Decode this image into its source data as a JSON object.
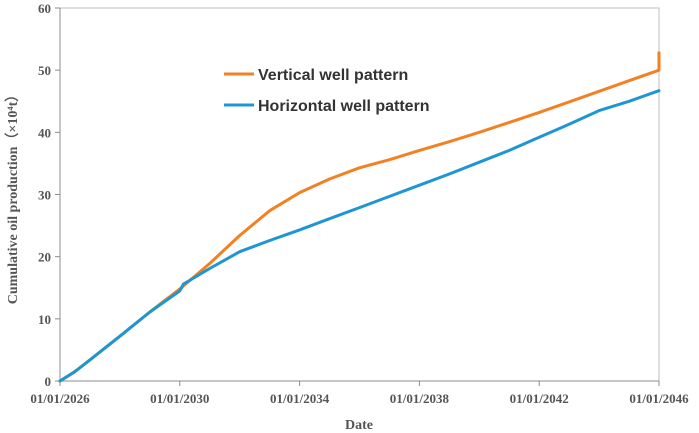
{
  "chart_data": {
    "type": "line",
    "title": "",
    "xlabel": "Date",
    "ylabel": "Cumulative oil production（×10⁴t）",
    "x_ticks": [
      "01/01/2026",
      "01/01/2030",
      "01/01/2034",
      "01/01/2038",
      "01/01/2042",
      "01/01/2046"
    ],
    "x_range": [
      "01/01/2026",
      "01/01/2046"
    ],
    "y_ticks": [
      "0",
      "10",
      "20",
      "30",
      "40",
      "50",
      "60"
    ],
    "ylim": [
      0,
      60
    ],
    "grid": false,
    "legend_position": "top-left inside plot",
    "series": [
      {
        "name": "Vertical well pattern",
        "color": "#F28123",
        "points": [
          [
            "2026-01-01",
            0
          ],
          [
            "2026-07-01",
            1.5
          ],
          [
            "2027-01-01",
            3.4
          ],
          [
            "2028-01-01",
            7.2
          ],
          [
            "2029-01-01",
            11.1
          ],
          [
            "2030-01-01",
            14.8
          ],
          [
            "2031-01-01",
            18.9
          ],
          [
            "2032-01-01",
            23.4
          ],
          [
            "2033-01-01",
            27.4
          ],
          [
            "2034-01-01",
            30.3
          ],
          [
            "2035-01-01",
            32.5
          ],
          [
            "2036-01-01",
            34.3
          ],
          [
            "2037-01-01",
            35.6
          ],
          [
            "2038-01-01",
            37.1
          ],
          [
            "2039-01-01",
            38.5
          ],
          [
            "2040-01-01",
            40.0
          ],
          [
            "2041-01-01",
            41.6
          ],
          [
            "2042-01-01",
            43.2
          ],
          [
            "2043-01-01",
            44.9
          ],
          [
            "2044-01-01",
            46.6
          ],
          [
            "2045-01-01",
            48.3
          ],
          [
            "2046-01-01",
            50.0
          ],
          [
            "2046-01-01",
            52.8
          ]
        ]
      },
      {
        "name": "Horizontal well pattern",
        "color": "#1F96D2",
        "points": [
          [
            "2026-01-01",
            0
          ],
          [
            "2026-07-01",
            1.5
          ],
          [
            "2027-01-01",
            3.4
          ],
          [
            "2028-01-01",
            7.2
          ],
          [
            "2029-01-01",
            11.1
          ],
          [
            "2030-01-01",
            14.5
          ],
          [
            "2030-02-15",
            15.6
          ],
          [
            "2031-01-01",
            18.1
          ],
          [
            "2032-01-01",
            20.8
          ],
          [
            "2033-01-01",
            22.6
          ],
          [
            "2034-01-01",
            24.3
          ],
          [
            "2035-01-01",
            26.1
          ],
          [
            "2036-01-01",
            27.9
          ],
          [
            "2037-01-01",
            29.7
          ],
          [
            "2038-01-01",
            31.5
          ],
          [
            "2039-01-01",
            33.3
          ],
          [
            "2040-01-01",
            35.2
          ],
          [
            "2041-01-01",
            37.1
          ],
          [
            "2042-01-01",
            39.2
          ],
          [
            "2043-01-01",
            41.3
          ],
          [
            "2044-01-01",
            43.5
          ],
          [
            "2045-01-01",
            45.0
          ],
          [
            "2046-01-01",
            46.7
          ]
        ]
      }
    ]
  }
}
